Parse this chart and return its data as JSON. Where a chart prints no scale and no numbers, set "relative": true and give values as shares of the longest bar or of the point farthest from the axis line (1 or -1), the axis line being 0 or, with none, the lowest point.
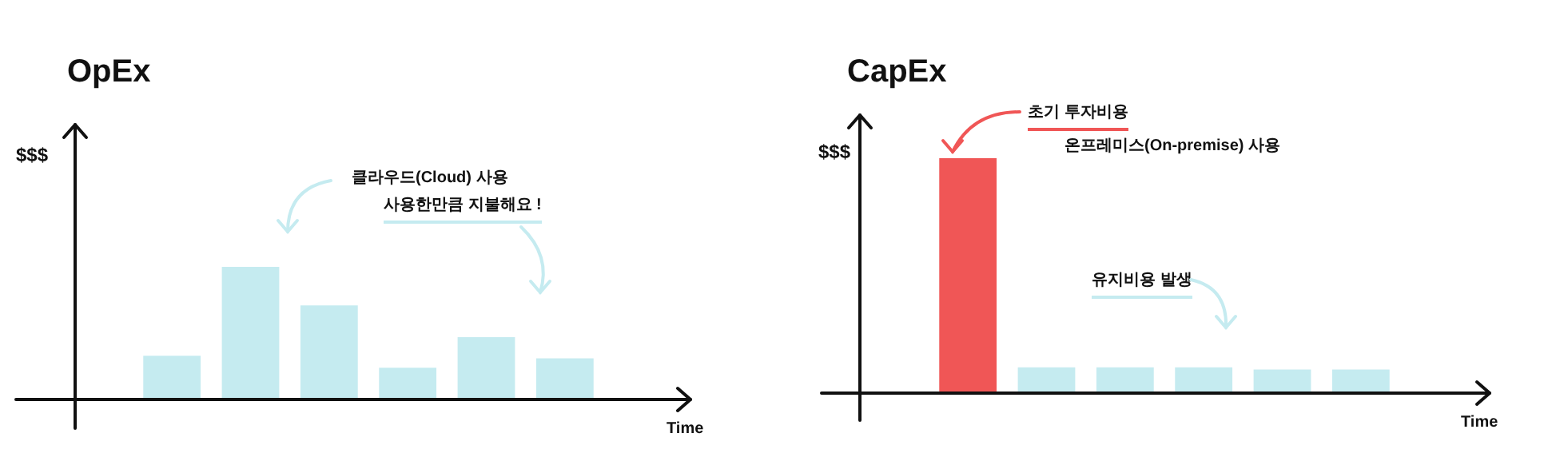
{
  "chart_data": [
    {
      "type": "bar",
      "title": "OpEx",
      "ylabel": "$$$",
      "xlabel": "Time",
      "relative": true,
      "categories": [
        null,
        null,
        null,
        null,
        null,
        null
      ],
      "values": [
        0.33,
        1,
        0.71,
        0.24,
        0.47,
        0.31
      ],
      "colors": [
        "#c5ebf0",
        "#c5ebf0",
        "#c5ebf0",
        "#c5ebf0",
        "#c5ebf0",
        "#c5ebf0"
      ],
      "annotations": [
        "클라우드(Cloud) 사용",
        "사용한만큼 지불해요 !"
      ]
    },
    {
      "type": "bar",
      "title": "CapEx",
      "ylabel": "$$$",
      "xlabel": "Time",
      "relative": true,
      "categories": [
        null,
        null,
        null,
        null,
        null,
        null
      ],
      "values": [
        1,
        0.11,
        0.11,
        0.11,
        0.1,
        0.1
      ],
      "colors": [
        "#f05656",
        "#c5ebf0",
        "#c5ebf0",
        "#c5ebf0",
        "#c5ebf0",
        "#c5ebf0"
      ],
      "annotations": [
        "초기 투자비용",
        "온프레미스(On-premise) 사용",
        "유지비용 발생"
      ]
    }
  ]
}
